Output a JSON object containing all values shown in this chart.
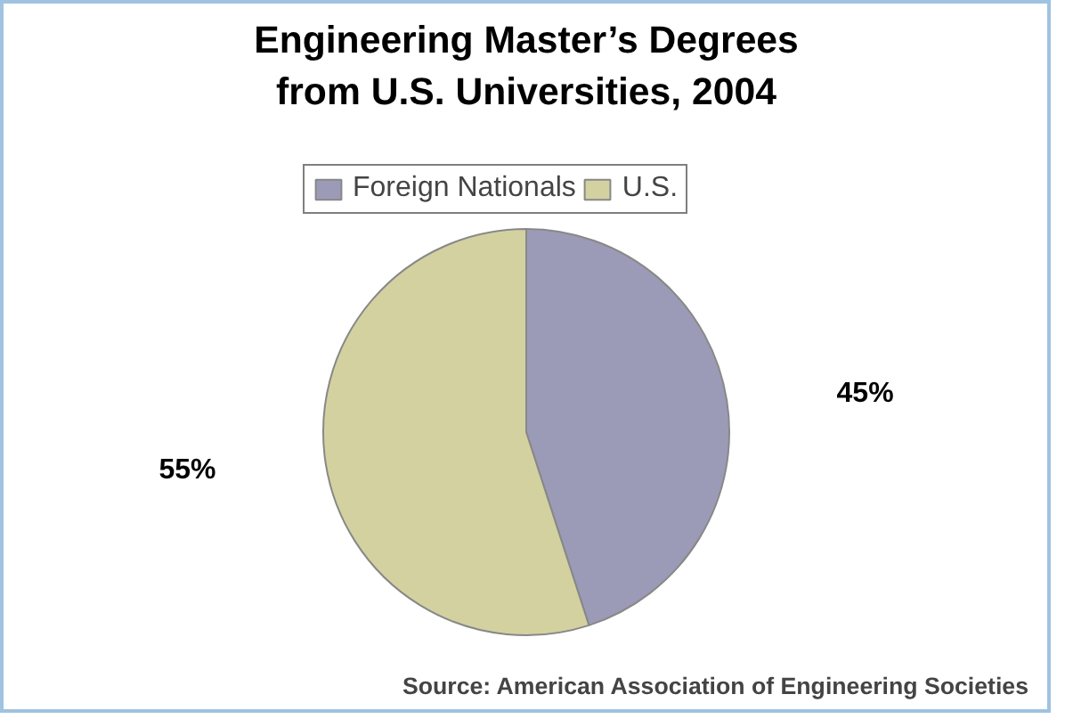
{
  "chart_data": {
    "type": "pie",
    "title": "Engineering Master’s Degrees\nfrom U.S. Universities, 2004",
    "categories": [
      "Foreign Nationals",
      "U.S."
    ],
    "values": [
      45,
      55
    ],
    "colors": [
      "#9b9bb8",
      "#d3d1a0"
    ],
    "value_labels": [
      "45%",
      "55%"
    ],
    "legend": "top",
    "annotations": [
      "Source: American Association of Engineering Societies"
    ]
  }
}
